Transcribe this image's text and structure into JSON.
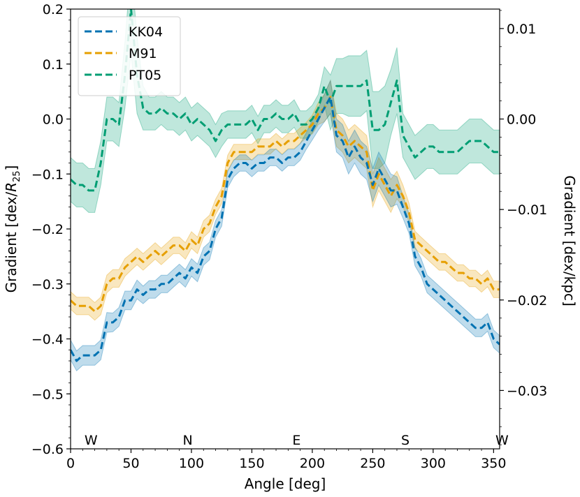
{
  "chart_data": {
    "type": "line",
    "title": "",
    "xlabel": "Angle [deg]",
    "ylabel": "Gradient [dex/",
    "ylabel_var": "R",
    "ylabel_sub": "25",
    "ylabel_end": "]",
    "y2label": "Gradient [dex/kpc]",
    "xlim": [
      0,
      355
    ],
    "ylim": [
      -0.6,
      0.2
    ],
    "y2lim": [
      -0.03645,
      0.01215
    ],
    "xticks": [
      0,
      50,
      100,
      150,
      200,
      250,
      300,
      350
    ],
    "xtick_labels": [
      "0",
      "50",
      "100",
      "150",
      "200",
      "250",
      "300",
      "350"
    ],
    "yticks": [
      -0.6,
      -0.5,
      -0.4,
      -0.3,
      -0.2,
      -0.1,
      0.0,
      0.1,
      0.2
    ],
    "ytick_labels": [
      "−0.6",
      "−0.5",
      "−0.4",
      "−0.3",
      "−0.2",
      "−0.1",
      "0.0",
      "0.1",
      "0.2"
    ],
    "y2ticks": [
      -0.03,
      -0.02,
      -0.01,
      0.0,
      0.01
    ],
    "y2tick_labels": [
      "−0.03",
      "−0.02",
      "−0.01",
      "0.00",
      "0.01"
    ],
    "grid": false,
    "legend_position": "top-left",
    "direction_labels": [
      {
        "text": "W",
        "x": 10
      },
      {
        "text": "N",
        "x": 90
      },
      {
        "text": "E",
        "x": 180
      },
      {
        "text": "S",
        "x": 270
      },
      {
        "text": "W",
        "x": 350
      }
    ],
    "x": [
      0,
      5,
      10,
      15,
      20,
      25,
      30,
      35,
      40,
      45,
      50,
      55,
      60,
      65,
      70,
      75,
      80,
      85,
      90,
      95,
      100,
      105,
      110,
      115,
      120,
      125,
      130,
      135,
      140,
      145,
      150,
      155,
      160,
      165,
      170,
      175,
      180,
      185,
      190,
      195,
      200,
      205,
      210,
      215,
      220,
      225,
      230,
      235,
      240,
      245,
      250,
      255,
      260,
      265,
      270,
      275,
      280,
      285,
      290,
      295,
      300,
      305,
      310,
      315,
      320,
      325,
      330,
      335,
      340,
      345,
      350,
      355
    ],
    "series": [
      {
        "name": "KK04",
        "color": "#0072b2",
        "values": [
          -0.42,
          -0.44,
          -0.43,
          -0.43,
          -0.43,
          -0.42,
          -0.37,
          -0.37,
          -0.36,
          -0.33,
          -0.33,
          -0.31,
          -0.32,
          -0.31,
          -0.31,
          -0.3,
          -0.3,
          -0.29,
          -0.28,
          -0.29,
          -0.27,
          -0.28,
          -0.25,
          -0.24,
          -0.2,
          -0.18,
          -0.11,
          -0.09,
          -0.08,
          -0.08,
          -0.09,
          -0.08,
          -0.08,
          -0.07,
          -0.07,
          -0.08,
          -0.07,
          -0.07,
          -0.06,
          -0.04,
          -0.02,
          0.0,
          0.02,
          0.04,
          -0.03,
          -0.04,
          -0.07,
          -0.05,
          -0.07,
          -0.08,
          -0.12,
          -0.09,
          -0.11,
          -0.13,
          -0.13,
          -0.16,
          -0.19,
          -0.25,
          -0.27,
          -0.3,
          -0.31,
          -0.32,
          -0.33,
          -0.34,
          -0.35,
          -0.36,
          -0.37,
          -0.38,
          -0.38,
          -0.37,
          -0.4,
          -0.41
        ],
        "err": [
          0.018,
          0.018,
          0.018,
          0.018,
          0.018,
          0.018,
          0.018,
          0.017,
          0.017,
          0.017,
          0.017,
          0.017,
          0.016,
          0.016,
          0.016,
          0.016,
          0.016,
          0.016,
          0.016,
          0.016,
          0.016,
          0.016,
          0.016,
          0.016,
          0.015,
          0.015,
          0.015,
          0.015,
          0.015,
          0.015,
          0.015,
          0.015,
          0.015,
          0.015,
          0.015,
          0.015,
          0.015,
          0.015,
          0.015,
          0.015,
          0.018,
          0.02,
          0.025,
          0.03,
          0.03,
          0.03,
          0.03,
          0.03,
          0.03,
          0.03,
          0.03,
          0.03,
          0.03,
          0.03,
          0.025,
          0.02,
          0.018,
          0.017,
          0.016,
          0.016,
          0.016,
          0.016,
          0.016,
          0.016,
          0.016,
          0.016,
          0.016,
          0.016,
          0.016,
          0.016,
          0.016,
          0.016
        ]
      },
      {
        "name": "M91",
        "color": "#e69f00",
        "values": [
          -0.33,
          -0.34,
          -0.34,
          -0.34,
          -0.35,
          -0.34,
          -0.3,
          -0.29,
          -0.29,
          -0.27,
          -0.26,
          -0.25,
          -0.26,
          -0.25,
          -0.24,
          -0.25,
          -0.24,
          -0.23,
          -0.23,
          -0.24,
          -0.22,
          -0.23,
          -0.2,
          -0.19,
          -0.16,
          -0.14,
          -0.08,
          -0.06,
          -0.06,
          -0.06,
          -0.06,
          -0.05,
          -0.05,
          -0.05,
          -0.04,
          -0.05,
          -0.04,
          -0.04,
          -0.03,
          -0.02,
          -0.01,
          0.01,
          0.02,
          0.04,
          -0.02,
          -0.03,
          -0.05,
          -0.04,
          -0.05,
          -0.06,
          -0.13,
          -0.1,
          -0.12,
          -0.14,
          -0.12,
          -0.14,
          -0.17,
          -0.22,
          -0.23,
          -0.24,
          -0.25,
          -0.26,
          -0.26,
          -0.27,
          -0.28,
          -0.28,
          -0.29,
          -0.29,
          -0.3,
          -0.29,
          -0.31,
          -0.31
        ],
        "err": [
          0.016,
          0.016,
          0.016,
          0.016,
          0.016,
          0.016,
          0.016,
          0.016,
          0.016,
          0.016,
          0.015,
          0.015,
          0.015,
          0.015,
          0.015,
          0.015,
          0.015,
          0.015,
          0.015,
          0.015,
          0.015,
          0.015,
          0.015,
          0.015,
          0.014,
          0.014,
          0.014,
          0.014,
          0.014,
          0.014,
          0.014,
          0.014,
          0.014,
          0.014,
          0.014,
          0.014,
          0.014,
          0.014,
          0.014,
          0.014,
          0.017,
          0.02,
          0.025,
          0.03,
          0.03,
          0.03,
          0.03,
          0.03,
          0.03,
          0.03,
          0.03,
          0.03,
          0.03,
          0.03,
          0.025,
          0.02,
          0.017,
          0.016,
          0.015,
          0.015,
          0.015,
          0.015,
          0.015,
          0.015,
          0.015,
          0.015,
          0.015,
          0.015,
          0.015,
          0.015,
          0.015,
          0.015
        ]
      },
      {
        "name": "PT05",
        "color": "#009e73",
        "values": [
          -0.11,
          -0.12,
          -0.12,
          -0.13,
          -0.13,
          -0.08,
          0.0,
          0.0,
          -0.01,
          0.08,
          0.2,
          0.08,
          0.02,
          0.01,
          0.01,
          0.02,
          0.01,
          0.01,
          0.0,
          0.01,
          -0.01,
          0.0,
          -0.01,
          -0.02,
          -0.04,
          -0.02,
          -0.01,
          -0.01,
          -0.01,
          -0.01,
          0.0,
          -0.02,
          0.0,
          0.0,
          0.01,
          0.0,
          0.0,
          0.01,
          -0.01,
          -0.01,
          0.0,
          0.02,
          0.06,
          0.03,
          0.06,
          0.06,
          0.06,
          0.06,
          0.06,
          0.07,
          -0.02,
          -0.02,
          -0.01,
          0.03,
          0.07,
          -0.03,
          -0.05,
          -0.07,
          -0.06,
          -0.05,
          -0.05,
          -0.06,
          -0.06,
          -0.06,
          -0.06,
          -0.05,
          -0.04,
          -0.04,
          -0.04,
          -0.05,
          -0.06,
          -0.06
        ],
        "err": [
          0.04,
          0.04,
          0.04,
          0.04,
          0.04,
          0.04,
          0.04,
          0.04,
          0.04,
          0.06,
          0.08,
          0.07,
          0.04,
          0.03,
          0.03,
          0.03,
          0.03,
          0.03,
          0.03,
          0.03,
          0.03,
          0.03,
          0.03,
          0.03,
          0.03,
          0.03,
          0.025,
          0.025,
          0.025,
          0.025,
          0.025,
          0.025,
          0.025,
          0.025,
          0.025,
          0.025,
          0.025,
          0.025,
          0.025,
          0.025,
          0.025,
          0.025,
          0.035,
          0.05,
          0.05,
          0.05,
          0.055,
          0.055,
          0.055,
          0.055,
          0.07,
          0.07,
          0.07,
          0.06,
          0.06,
          0.04,
          0.04,
          0.04,
          0.04,
          0.04,
          0.04,
          0.04,
          0.04,
          0.04,
          0.04,
          0.04,
          0.04,
          0.04,
          0.04,
          0.04,
          0.04,
          0.04
        ]
      }
    ]
  }
}
